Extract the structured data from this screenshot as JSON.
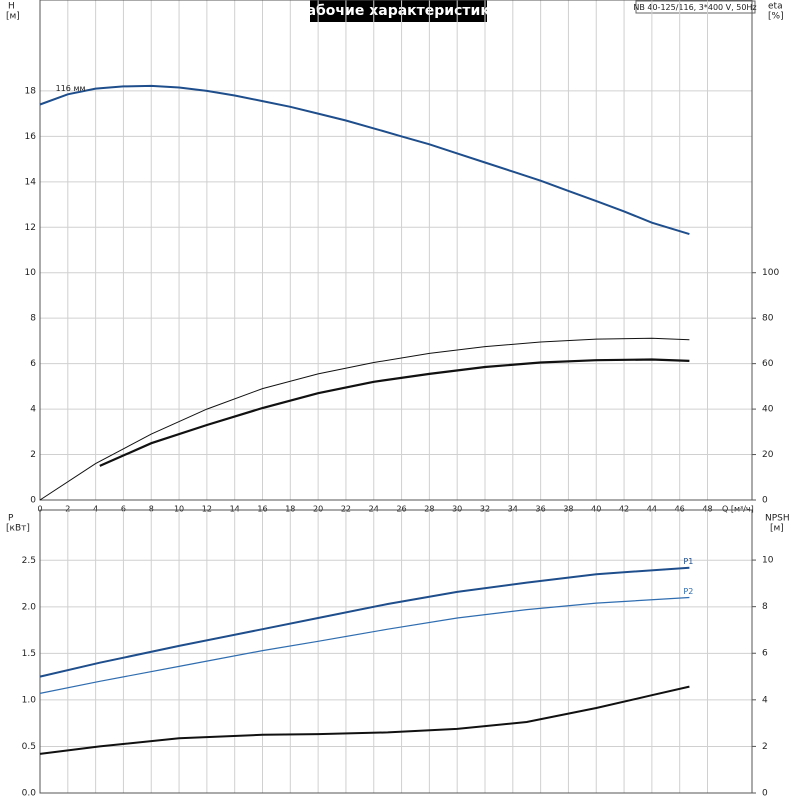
{
  "chart_data": [
    {
      "type": "line",
      "title": "Рабочие характеристики",
      "subtitle": "NB 40-125/116, 3*400 V, 50Hz",
      "x_label": "Q [м³/ч]",
      "y_label": "H",
      "y_unit": "[м]",
      "y2_label": "eta",
      "y2_unit": "[%]",
      "xlim": [
        0,
        51.2
      ],
      "xticks": [
        0,
        2,
        4,
        6,
        8,
        10,
        12,
        14,
        16,
        18,
        20,
        22,
        24,
        26,
        28,
        30,
        32,
        34,
        36,
        38,
        40,
        42,
        44,
        46,
        48
      ],
      "ylim": [
        0,
        22
      ],
      "yticks": [
        0,
        2,
        4,
        6,
        8,
        10,
        12,
        14,
        16,
        18
      ],
      "y2lim": [
        0,
        220
      ],
      "y2ticks": [
        0,
        20,
        40,
        60,
        80,
        100
      ],
      "grid": true,
      "series": [
        {
          "name": "116 мм",
          "color": "#1f4e8c",
          "line_width": 2,
          "x": [
            0,
            2,
            4,
            6,
            8,
            10,
            12,
            14,
            16,
            18,
            20,
            22,
            24,
            26,
            28,
            30,
            32,
            34,
            36,
            38,
            40,
            42,
            44,
            46.7
          ],
          "values": [
            17.4,
            17.85,
            18.1,
            18.2,
            18.22,
            18.15,
            18.0,
            17.8,
            17.55,
            17.3,
            17.0,
            16.7,
            16.35,
            16.0,
            15.65,
            15.25,
            14.85,
            14.45,
            14.05,
            13.6,
            13.15,
            12.7,
            12.2,
            11.7
          ]
        },
        {
          "color": "#111111",
          "line_width": 1,
          "axis": "y2",
          "x": [
            0,
            4,
            8,
            12,
            16,
            20,
            24,
            28,
            32,
            36,
            40,
            44,
            46.7
          ],
          "values": [
            0,
            16,
            29,
            40,
            49,
            55.5,
            60.5,
            64.5,
            67.5,
            69.5,
            70.8,
            71.2,
            70.5
          ]
        },
        {
          "color": "#111111",
          "line_width": 2.2,
          "axis": "y2",
          "x": [
            4.3,
            8,
            12,
            16,
            20,
            24,
            28,
            32,
            36,
            40,
            44,
            46.7
          ],
          "values": [
            15,
            25,
            33,
            40.5,
            47,
            52,
            55.5,
            58.5,
            60.5,
            61.5,
            61.8,
            61.2
          ]
        }
      ]
    },
    {
      "type": "line",
      "y_label": "P",
      "y_unit": "[кВт]",
      "y2_label": "NPSH",
      "y2_unit": "[м]",
      "xlim": [
        0,
        51.2
      ],
      "ylim": [
        0,
        3.04
      ],
      "yticks": [
        {
          "value": 0,
          "label": "0.0"
        },
        0.5,
        {
          "value": 1,
          "label": "1.0"
        },
        1.5,
        {
          "value": 2,
          "label": "2.0"
        },
        2.5
      ],
      "y2lim": [
        0,
        12.15
      ],
      "y2ticks": [
        0,
        2,
        4,
        6,
        8,
        10
      ],
      "grid": true,
      "series": [
        {
          "name": "P1",
          "color": "#1f4e8c",
          "line_width": 2,
          "x": [
            0,
            4.3,
            10,
            16,
            20,
            25,
            30,
            35,
            40,
            46.7
          ],
          "values": [
            1.25,
            1.4,
            1.58,
            1.76,
            1.88,
            2.03,
            2.16,
            2.26,
            2.35,
            2.42
          ]
        },
        {
          "name": "P2",
          "color": "#2f6db0",
          "line_width": 1.2,
          "x": [
            0,
            4.3,
            10,
            16,
            20,
            25,
            30,
            35,
            40,
            46.7
          ],
          "values": [
            1.07,
            1.2,
            1.36,
            1.53,
            1.63,
            1.76,
            1.88,
            1.97,
            2.04,
            2.1
          ]
        },
        {
          "color": "#111111",
          "line_width": 2,
          "axis": "y2",
          "x": [
            0,
            4.3,
            10,
            16,
            20,
            25,
            30,
            35,
            40,
            44,
            46.7
          ],
          "values": [
            1.68,
            2.0,
            2.35,
            2.5,
            2.53,
            2.6,
            2.75,
            3.05,
            3.65,
            4.2,
            4.57
          ]
        }
      ]
    }
  ]
}
